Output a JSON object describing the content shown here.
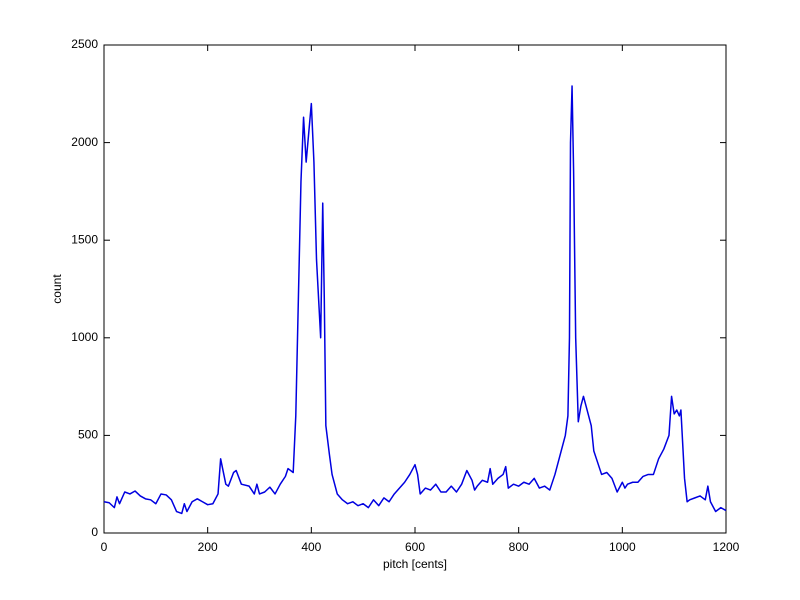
{
  "chart_data": {
    "type": "line",
    "xlabel": "pitch [cents]",
    "ylabel": "count",
    "xlim": [
      0,
      1200
    ],
    "ylim": [
      0,
      2500
    ],
    "xticks": [
      0,
      200,
      400,
      600,
      800,
      1000,
      1200
    ],
    "yticks": [
      0,
      500,
      1000,
      1500,
      2000,
      2500
    ],
    "grid": false,
    "x": [
      0,
      10,
      20,
      25,
      30,
      40,
      50,
      60,
      70,
      80,
      90,
      100,
      110,
      120,
      130,
      140,
      150,
      155,
      160,
      170,
      180,
      190,
      200,
      210,
      220,
      225,
      235,
      240,
      250,
      255,
      265,
      280,
      290,
      295,
      300,
      310,
      320,
      330,
      340,
      350,
      355,
      365,
      370,
      375,
      380,
      385,
      390,
      395,
      400,
      405,
      410,
      415,
      418,
      422,
      425,
      428,
      435,
      440,
      450,
      460,
      470,
      480,
      490,
      500,
      510,
      520,
      530,
      540,
      550,
      560,
      570,
      580,
      590,
      600,
      605,
      610,
      620,
      630,
      640,
      650,
      660,
      670,
      680,
      690,
      700,
      710,
      715,
      720,
      730,
      740,
      745,
      750,
      760,
      770,
      775,
      780,
      790,
      800,
      810,
      820,
      830,
      840,
      850,
      860,
      870,
      880,
      890,
      895,
      898,
      900,
      903,
      906,
      910,
      915,
      920,
      925,
      930,
      940,
      945,
      950,
      960,
      970,
      980,
      990,
      1000,
      1005,
      1010,
      1020,
      1030,
      1040,
      1050,
      1060,
      1070,
      1080,
      1090,
      1095,
      1100,
      1105,
      1110,
      1113,
      1120,
      1125,
      1130,
      1140,
      1150,
      1160,
      1165,
      1170,
      1180,
      1190,
      1200
    ],
    "series": [
      {
        "name": "count",
        "color": "#0000e0",
        "values": [
          160,
          155,
          130,
          185,
          150,
          210,
          200,
          215,
          190,
          175,
          170,
          150,
          200,
          195,
          170,
          110,
          100,
          150,
          110,
          160,
          175,
          160,
          145,
          150,
          200,
          380,
          250,
          240,
          310,
          320,
          250,
          240,
          200,
          250,
          200,
          210,
          235,
          200,
          250,
          290,
          330,
          310,
          600,
          1200,
          1800,
          2130,
          1900,
          2050,
          2200,
          1900,
          1400,
          1150,
          1000,
          1690,
          1200,
          550,
          400,
          300,
          200,
          170,
          150,
          160,
          140,
          150,
          130,
          170,
          140,
          180,
          160,
          200,
          230,
          260,
          300,
          350,
          300,
          200,
          230,
          220,
          250,
          210,
          210,
          240,
          210,
          250,
          320,
          270,
          220,
          240,
          270,
          260,
          330,
          250,
          280,
          300,
          340,
          230,
          250,
          240,
          260,
          250,
          280,
          230,
          240,
          220,
          300,
          400,
          500,
          600,
          1000,
          2000,
          2290,
          1850,
          1000,
          570,
          650,
          700,
          650,
          550,
          420,
          380,
          300,
          310,
          280,
          210,
          260,
          230,
          250,
          260,
          260,
          290,
          300,
          300,
          380,
          430,
          500,
          700,
          610,
          630,
          600,
          630,
          280,
          160,
          170,
          180,
          190,
          170,
          240,
          160,
          110,
          130,
          115
        ]
      }
    ]
  }
}
